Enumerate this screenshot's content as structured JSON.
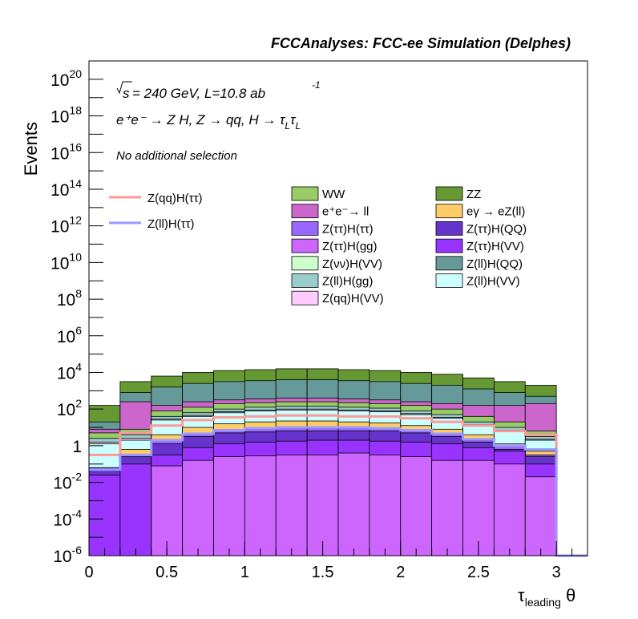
{
  "header": {
    "title": "FCCAnalyses: FCC-ee Simulation (Delphes)"
  },
  "annotations": {
    "energy_sqrt": "√s",
    "energy_rest": " = 240 GeV, L=10.8 ab",
    "lumi_exp": "-1",
    "process": "e⁺e⁻ → Z H, Z → qq, H → τ",
    "tau_sub": "L",
    "tau2": "τ",
    "tau2_sub": "L",
    "selection": "No additional selection"
  },
  "chart_data": {
    "type": "bar",
    "subtype": "stacked-histogram",
    "ylabel": "Events",
    "xlabel": "τ",
    "xlabel_sub": "leading",
    "xlabel_suffix": " θ",
    "xlim": [
      0,
      3.2
    ],
    "ylim_exponent": [
      -6,
      21
    ],
    "yscale": "log",
    "x_ticks": [
      "0",
      "0.5",
      "1",
      "1.5",
      "2",
      "2.5",
      "3"
    ],
    "y_tick_exponents": [
      -6,
      -4,
      -2,
      0,
      2,
      4,
      6,
      8,
      10,
      12,
      14,
      16,
      18,
      20
    ],
    "bin_edges": [
      0,
      0.2,
      0.4,
      0.6,
      0.8,
      1.0,
      1.2,
      1.4,
      1.6,
      1.8,
      2.0,
      2.2,
      2.4,
      2.6,
      2.8,
      3.0,
      3.2
    ],
    "stack_tops_log10": [
      {
        "name": "Z(νν)H(VV)",
        "color": "#ccffcc",
        "values": [
          -6,
          -6,
          -6,
          -6,
          -6,
          -6,
          -6,
          -6,
          -6,
          -6,
          -6,
          -6,
          -6,
          -6,
          -6,
          -6
        ]
      },
      {
        "name": "Z(ττ)H(gg)",
        "color": "#cc66ff",
        "values": [
          -6,
          -6,
          -1.1,
          -0.8,
          -0.6,
          -0.55,
          -0.5,
          -0.5,
          -0.4,
          -0.5,
          -0.6,
          -0.8,
          -0.8,
          -1.0,
          -1.7,
          -6
        ]
      },
      {
        "name": "Z(ττ)H(VV)",
        "color": "#9933ff",
        "values": [
          -1.6,
          -1.0,
          -0.5,
          -0.1,
          0.1,
          0.2,
          0.25,
          0.3,
          0.3,
          0.25,
          0.2,
          0.1,
          -0.1,
          -0.3,
          -1.0,
          -6
        ]
      },
      {
        "name": "Z(ττ)H(QQ)",
        "color": "#6633cc",
        "values": [
          -1.2,
          -0.6,
          0.1,
          0.5,
          0.7,
          0.75,
          0.8,
          0.8,
          0.8,
          0.8,
          0.7,
          0.5,
          0.2,
          -0.2,
          -0.6,
          -6
        ]
      },
      {
        "name": "Z(ττ)H(ττ)",
        "color": "#9966ff",
        "values": [
          -1.2,
          -0.5,
          0.3,
          0.6,
          0.85,
          0.95,
          1.0,
          1.0,
          1.0,
          0.95,
          0.85,
          0.6,
          0.3,
          0.0,
          -0.5,
          -6
        ]
      },
      {
        "name": "eγ → eZ(ll)",
        "color": "#ffcc66",
        "values": [
          -1.3,
          -0.2,
          0.6,
          1.0,
          1.2,
          1.3,
          1.35,
          1.35,
          1.3,
          1.25,
          1.1,
          0.9,
          0.6,
          0.1,
          -0.3,
          -6
        ]
      },
      {
        "name": "Z(ll)H(VV)",
        "color": "#ccffff",
        "values": [
          0.1,
          0.3,
          1.4,
          1.6,
          1.8,
          1.9,
          1.95,
          1.95,
          1.9,
          1.85,
          1.7,
          1.5,
          1.1,
          0.8,
          0.3,
          -6
        ]
      },
      {
        "name": "Z(qq)H(VV)",
        "color": "#ffccff",
        "values": [
          0.2,
          0.4,
          1.45,
          1.65,
          1.85,
          1.95,
          2.0,
          2.0,
          1.95,
          1.9,
          1.75,
          1.55,
          1.15,
          0.85,
          0.35,
          -6
        ]
      },
      {
        "name": "Z(ll)H(gg)",
        "color": "#99cccc",
        "values": [
          0.4,
          0.6,
          1.6,
          1.8,
          2.0,
          2.1,
          2.15,
          2.15,
          2.1,
          2.05,
          1.9,
          1.7,
          1.3,
          1.0,
          0.5,
          -6
        ]
      },
      {
        "name": "WW",
        "color": "#99cc66",
        "values": [
          0.7,
          0.9,
          1.9,
          2.1,
          2.3,
          2.35,
          2.4,
          2.4,
          2.35,
          2.3,
          2.2,
          2.0,
          1.6,
          1.3,
          0.8,
          -6
        ]
      },
      {
        "name": "e⁺e⁻→ ll",
        "color": "#cc66cc",
        "values": [
          0.9,
          2.4,
          2.2,
          2.4,
          2.5,
          2.55,
          2.6,
          2.6,
          2.55,
          2.5,
          2.4,
          2.3,
          2.2,
          2.2,
          2.3,
          -6
        ]
      },
      {
        "name": "Z(ll)H(QQ)",
        "color": "#669999",
        "values": [
          1.3,
          2.9,
          3.2,
          3.4,
          3.5,
          3.55,
          3.6,
          3.6,
          3.55,
          3.5,
          3.4,
          3.3,
          3.1,
          2.9,
          2.7,
          -6
        ]
      },
      {
        "name": "ZZ",
        "color": "#669933",
        "values": [
          2.2,
          3.5,
          3.8,
          4.0,
          4.1,
          4.15,
          4.2,
          4.2,
          4.15,
          4.1,
          4.0,
          3.9,
          3.7,
          3.5,
          3.3,
          -6
        ]
      }
    ],
    "overlay_lines_log10": [
      {
        "name": "Z(qq)H(ττ)",
        "color": "#ff9999",
        "values": [
          -0.5,
          0.7,
          1.1,
          1.4,
          1.55,
          1.6,
          1.65,
          1.65,
          1.6,
          1.6,
          1.5,
          1.3,
          1.1,
          0.8,
          0.6,
          -6
        ]
      },
      {
        "name": "Z(ll)H(ττ)",
        "color": "#9999ff",
        "values": [
          -1.3,
          -0.5,
          0.3,
          0.65,
          0.85,
          0.95,
          1.0,
          1.0,
          1.0,
          0.95,
          0.85,
          0.65,
          0.35,
          0.0,
          -0.2,
          -6
        ]
      }
    ],
    "legend_right": [
      [
        "WW",
        "ZZ"
      ],
      [
        "e⁺e⁻→ ll",
        "eγ → eZ(ll)"
      ],
      [
        "Z(ττ)H(ττ)",
        "Z(ττ)H(QQ)"
      ],
      [
        "Z(ττ)H(gg)",
        "Z(ττ)H(VV)"
      ],
      [
        "Z(νν)H(VV)",
        "Z(ll)H(QQ)"
      ],
      [
        "Z(ll)H(gg)",
        "Z(ll)H(VV)"
      ],
      [
        "Z(qq)H(VV)",
        ""
      ]
    ],
    "legend_left": [
      "Z(qq)H(ττ)",
      "Z(ll)H(ττ)"
    ]
  }
}
